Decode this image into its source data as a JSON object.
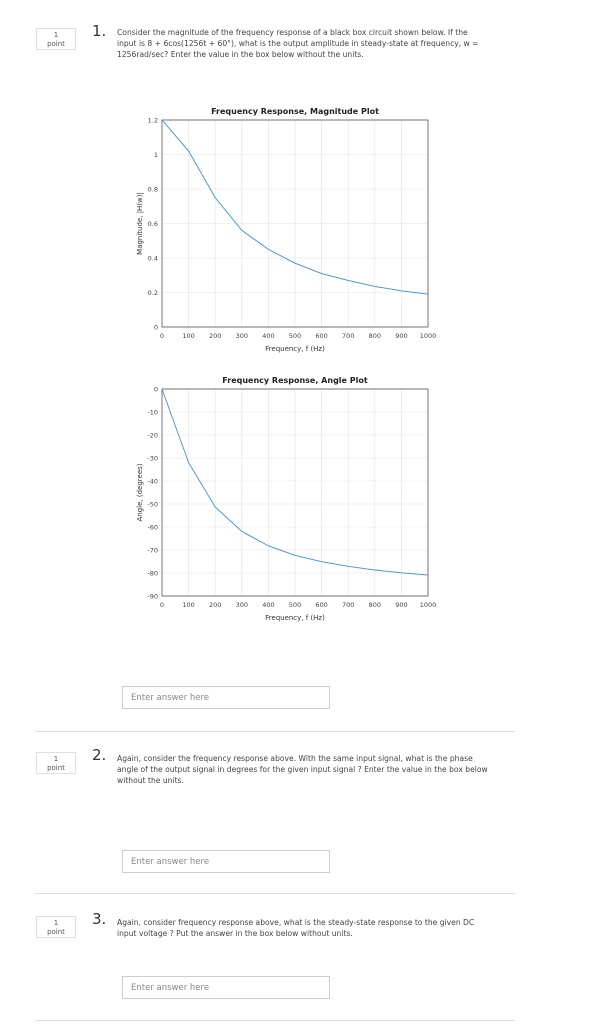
{
  "questions": [
    {
      "points": "1",
      "points_label": "point",
      "number": "1.",
      "text": "Consider the magnitude of the frequency response of a black box circuit shown below. If the input is 8 + 6cos(1256t + 60°), what is the output amplitude in steady-state at frequency, w = 1256rad/sec? Enter the value in the box below without the units.",
      "placeholder": "Enter answer here"
    },
    {
      "points": "1",
      "points_label": "point",
      "number": "2.",
      "text": "Again, consider the frequency response above. With the same input signal, what is the phase angle of the output signal in degrees for the given input signal ? Enter the value in the box below without the units.",
      "placeholder": "Enter answer here"
    },
    {
      "points": "1",
      "points_label": "point",
      "number": "3.",
      "text": "Again, consider frequency response above, what is the steady-state response to the given DC input voltage ? Put the answer in the box below without units.",
      "placeholder": "Enter answer here"
    }
  ],
  "chart_data": [
    {
      "type": "line",
      "title": "Frequency Response, Magnitude Plot",
      "x_label": "Frequency, f (Hz)",
      "y_label": "Magnitude, |H(w)|",
      "x": [
        0,
        100,
        200,
        300,
        400,
        500,
        600,
        700,
        800,
        900,
        1000
      ],
      "values": [
        1.2,
        1.02,
        0.75,
        0.56,
        0.45,
        0.37,
        0.31,
        0.27,
        0.235,
        0.21,
        0.19
      ],
      "color": "#3b8fd6",
      "grid": true,
      "xlim": [
        0,
        1000
      ],
      "xticks": [
        0,
        100,
        200,
        300,
        400,
        500,
        600,
        700,
        800,
        900,
        1000
      ],
      "ylim": [
        0,
        1.2
      ],
      "yticks": [
        0,
        0.2,
        0.4,
        0.6,
        0.8,
        1,
        1.2
      ]
    },
    {
      "type": "line",
      "title": "Frequency Response, Angle Plot",
      "x_label": "Frequency, f (Hz)",
      "y_label": "Angle, (degrees)",
      "x": [
        0,
        100,
        200,
        300,
        400,
        500,
        600,
        700,
        800,
        900,
        1000
      ],
      "values": [
        0,
        -32,
        -51.3,
        -61.9,
        -68.2,
        -72.3,
        -75.1,
        -77.1,
        -78.7,
        -79.9,
        -80.9
      ],
      "color": "#3b8fd6",
      "grid": true,
      "xlim": [
        0,
        1000
      ],
      "xticks": [
        0,
        100,
        200,
        300,
        400,
        500,
        600,
        700,
        800,
        900,
        1000
      ],
      "ylim": [
        -90,
        0
      ],
      "yticks": [
        -90,
        -80,
        -70,
        -60,
        -50,
        -40,
        -30,
        -20,
        -10,
        0
      ]
    }
  ]
}
